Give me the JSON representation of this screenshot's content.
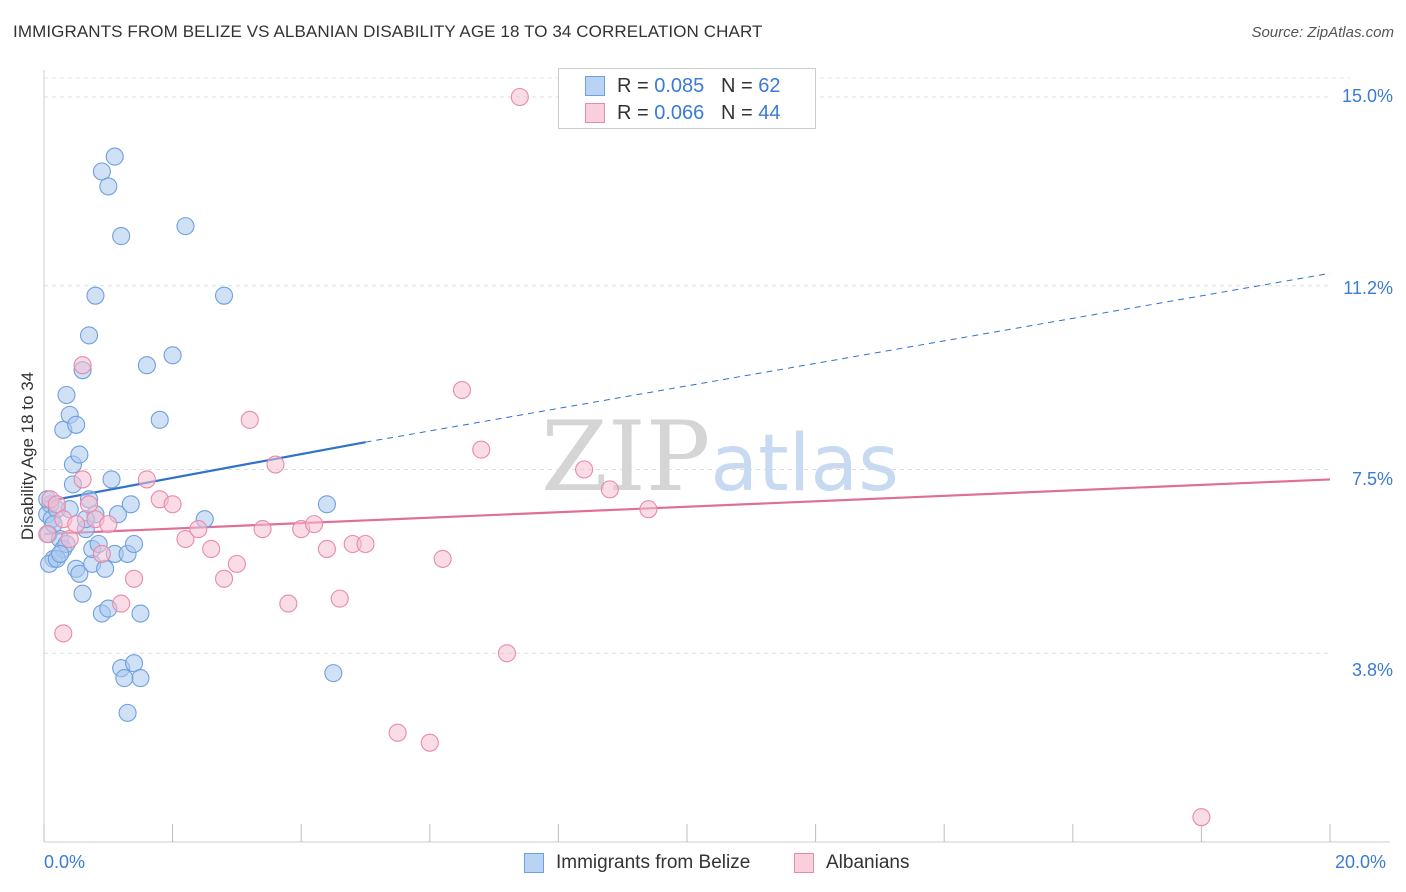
{
  "chart_data": {
    "type": "scatter",
    "title": "IMMIGRANTS FROM BELIZE VS ALBANIAN DISABILITY AGE 18 TO 34 CORRELATION CHART",
    "source": "Source: ZipAtlas.com",
    "xlabel": "",
    "ylabel": "Disability Age 18 to 34",
    "xlim": [
      0,
      20
    ],
    "ylim": [
      0,
      15.5
    ],
    "x_tick_labels": [
      "0.0%",
      "20.0%"
    ],
    "y_ticks": [
      3.8,
      7.5,
      11.2,
      15.0
    ],
    "y_tick_labels": [
      "3.8%",
      "7.5%",
      "11.2%",
      "15.0%"
    ],
    "grid": true,
    "watermark": "ZIPatlas",
    "legend": [
      {
        "r_label": "R = ",
        "r_value": "0.085",
        "n_label": "N = ",
        "n_value": "62"
      },
      {
        "r_label": "R = ",
        "r_value": "0.066",
        "n_label": "N = ",
        "n_value": "44"
      }
    ],
    "series": [
      {
        "name": "Immigrants from Belize",
        "color": "#a9c8ef",
        "edge_color": "#6fa0dd",
        "line_color": "#2f72c8",
        "trend": {
          "x0": 0,
          "y0": 6.85,
          "x1": 5,
          "y1": 8.05,
          "dashed_to_x": 20,
          "dashed_to_y": 11.45
        },
        "x": [
          0.05,
          0.07,
          0.1,
          0.12,
          0.15,
          0.05,
          0.08,
          0.2,
          0.25,
          0.3,
          0.35,
          0.4,
          0.45,
          0.5,
          0.55,
          0.6,
          0.65,
          0.7,
          0.75,
          0.8,
          0.9,
          1.0,
          1.1,
          1.2,
          1.3,
          1.4,
          1.5,
          1.6,
          1.8,
          2.0,
          2.2,
          2.5,
          2.8,
          0.15,
          0.2,
          0.3,
          0.4,
          0.5,
          0.6,
          0.7,
          0.8,
          0.9,
          1.0,
          1.1,
          1.2,
          1.3,
          1.4,
          1.5,
          0.25,
          0.35,
          0.45,
          0.55,
          0.65,
          0.75,
          0.85,
          0.95,
          1.05,
          1.15,
          1.25,
          1.35,
          4.5,
          4.4
        ],
        "y": [
          6.6,
          6.2,
          6.8,
          6.5,
          5.7,
          6.9,
          5.6,
          6.7,
          6.1,
          5.9,
          6.0,
          6.7,
          7.2,
          5.5,
          5.4,
          5.0,
          6.3,
          6.9,
          5.6,
          6.6,
          4.6,
          4.7,
          5.8,
          3.5,
          2.6,
          3.6,
          3.3,
          9.6,
          8.5,
          9.8,
          12.4,
          6.5,
          11.0,
          6.4,
          5.7,
          8.3,
          8.6,
          8.4,
          9.5,
          10.2,
          11.0,
          13.5,
          13.2,
          13.8,
          12.2,
          5.8,
          6.0,
          4.6,
          5.8,
          9.0,
          7.6,
          7.8,
          6.5,
          5.9,
          6.0,
          5.5,
          7.3,
          6.6,
          3.3,
          6.8,
          3.4,
          6.8
        ]
      },
      {
        "name": "Albanians",
        "color": "#f6c0d1",
        "edge_color": "#e88aaa",
        "line_color": "#e06f97",
        "trend": {
          "x0": 0,
          "y0": 6.2,
          "x1": 20,
          "y1": 7.3
        },
        "x": [
          0.05,
          0.1,
          0.2,
          0.3,
          0.4,
          0.5,
          0.6,
          0.7,
          0.8,
          0.9,
          1.0,
          1.2,
          1.4,
          1.6,
          1.8,
          2.0,
          2.2,
          2.4,
          2.6,
          2.8,
          3.0,
          3.2,
          3.4,
          3.6,
          3.8,
          4.0,
          4.2,
          4.4,
          4.6,
          4.8,
          5.0,
          5.5,
          6.0,
          6.2,
          6.5,
          6.8,
          7.2,
          7.4,
          8.4,
          8.8,
          9.4,
          18.0,
          0.3,
          0.6
        ],
        "y": [
          6.2,
          6.9,
          6.8,
          6.5,
          6.1,
          6.4,
          7.3,
          6.8,
          6.5,
          5.8,
          6.4,
          4.8,
          5.3,
          7.3,
          6.9,
          6.8,
          6.1,
          6.3,
          5.9,
          5.3,
          5.6,
          8.5,
          6.3,
          7.6,
          4.8,
          6.3,
          6.4,
          5.9,
          4.9,
          6.0,
          6.0,
          2.2,
          2.0,
          5.7,
          9.1,
          7.9,
          3.8,
          15.0,
          7.5,
          7.1,
          6.7,
          0.5,
          4.2,
          9.6
        ]
      }
    ]
  }
}
